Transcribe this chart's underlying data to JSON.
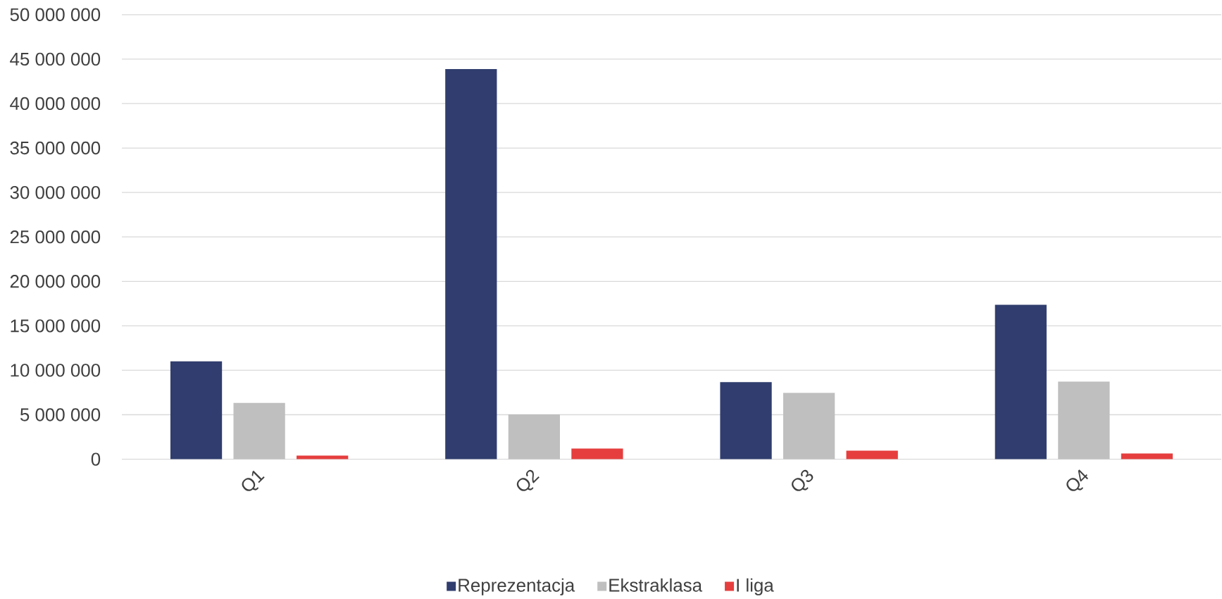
{
  "chart_data": {
    "type": "bar",
    "categories": [
      "Q1",
      "Q2",
      "Q3",
      "Q4"
    ],
    "series": [
      {
        "name": "Reprezentacja",
        "color": "#303d6e",
        "values": [
          11000000,
          43880000,
          8670000,
          17370000
        ]
      },
      {
        "name": "Ekstraklasa",
        "color": "#bfbfbf",
        "values": [
          6330000,
          5050000,
          7460000,
          8730000
        ]
      },
      {
        "name": "I liga",
        "color": "#e63e3e",
        "values": [
          410000,
          1200000,
          960000,
          650000
        ]
      }
    ],
    "ylim": [
      0,
      50000000
    ],
    "yticks": [
      0,
      {
        "value": 5000000,
        "label": "5 000 000"
      },
      {
        "value": 10000000,
        "label": "10 000 000"
      },
      {
        "value": 15000000,
        "label": "15 000 000"
      },
      {
        "value": 20000000,
        "label": "20 000 000"
      },
      {
        "value": 25000000,
        "label": "25 000 000"
      },
      {
        "value": 30000000,
        "label": "30 000 000"
      },
      {
        "value": 35000000,
        "label": "35 000 000"
      },
      {
        "value": 40000000,
        "label": "40 000 000"
      },
      {
        "value": 45000000,
        "label": "45 000 000"
      },
      {
        "value": 50000000,
        "label": "50 000 000"
      }
    ],
    "grid": "y",
    "legend": "bottom"
  }
}
